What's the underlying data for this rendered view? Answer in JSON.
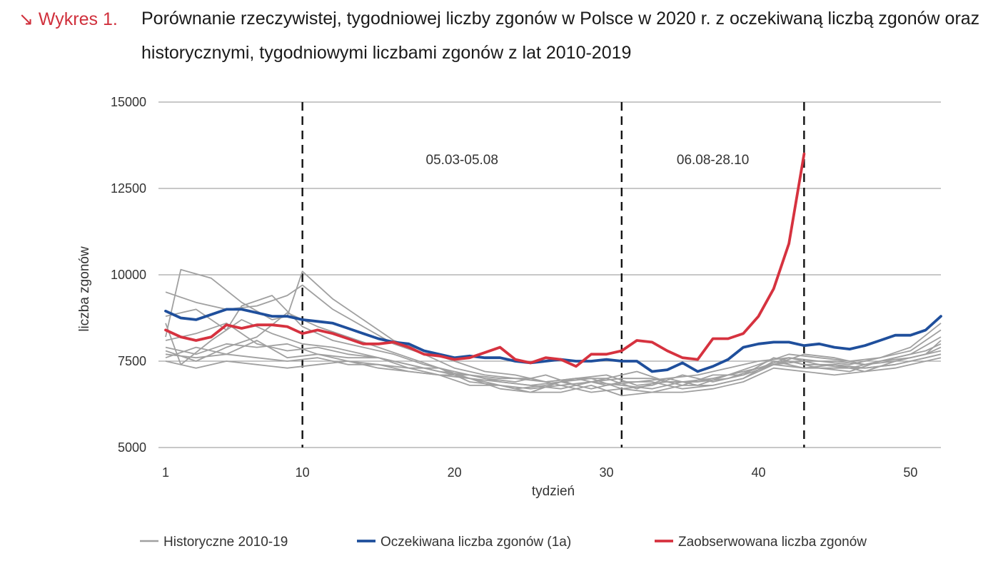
{
  "header": {
    "label": "↘ Wykres 1.",
    "title": "Porównanie rzeczywistej, tygodniowej liczby zgonów w Polsce w 2020 r. z oczekiwaną liczbą zgonów oraz historycznymi, tygodniowymi liczbami zgonów z lat 2010-2019"
  },
  "colors": {
    "historical": "#a0a0a0",
    "expected": "#1f4f9c",
    "observed": "#d6323f",
    "title_accent": "#d0303c"
  },
  "chart_data": {
    "type": "line",
    "xlabel": "tydzień",
    "ylabel": "liczba zgonów",
    "xlim": [
      1,
      52
    ],
    "ylim": [
      5000,
      15000
    ],
    "x_ticks": [
      1,
      10,
      20,
      30,
      40,
      50
    ],
    "y_ticks": [
      5000,
      7500,
      10000,
      12500,
      15000
    ],
    "grid": "horizontal",
    "vertical_markers": [
      10,
      31,
      43
    ],
    "period_labels": [
      {
        "text": "05.03-05.08",
        "x": 20.5,
        "y": 13200
      },
      {
        "text": "06.08-28.10",
        "x": 37,
        "y": 13200
      }
    ],
    "legend_position": "bottom",
    "series": [
      {
        "name": "Historyczne 2010-19",
        "color": "#a0a0a0",
        "group": "historical",
        "lines": [
          {
            "x": [
              1,
              3,
              5,
              7,
              9,
              10,
              12,
              14,
              16,
              18,
              20,
              22,
              24,
              26,
              28,
              30,
              32,
              34,
              36,
              38,
              40,
              42,
              44,
              46,
              48,
              50,
              52
            ],
            "y": [
              9500,
              9200,
              9000,
              9100,
              9400,
              9700,
              9000,
              8500,
              8000,
              7700,
              7300,
              7100,
              7000,
              6900,
              7000,
              6800,
              6900,
              7000,
              7100,
              7300,
              7500,
              7600,
              7500,
              7400,
              7600,
              7800,
              8400
            ]
          },
          {
            "x": [
              1,
              2,
              4,
              6,
              8,
              9,
              10,
              12,
              14,
              16,
              18,
              20,
              22,
              24,
              26,
              28,
              30,
              32,
              34,
              36,
              38,
              40,
              42,
              44,
              46,
              48,
              50,
              52
            ],
            "y": [
              8200,
              10150,
              9900,
              9200,
              8700,
              8800,
              10100,
              9300,
              8700,
              8100,
              7800,
              7500,
              7200,
              7100,
              6900,
              7000,
              7100,
              6800,
              6900,
              6900,
              7100,
              7400,
              7700,
              7600,
              7500,
              7600,
              7900,
              8600
            ]
          },
          {
            "x": [
              1,
              3,
              5,
              7,
              9,
              11,
              13,
              15,
              17,
              19,
              21,
              23,
              25,
              27,
              29,
              31,
              33,
              35,
              37,
              39,
              41,
              43,
              45,
              47,
              49,
              51,
              52
            ],
            "y": [
              7800,
              7500,
              7900,
              8200,
              8900,
              8500,
              8200,
              7900,
              7600,
              7300,
              7000,
              6900,
              6800,
              6700,
              6900,
              6800,
              6700,
              6900,
              7000,
              7200,
              7400,
              7500,
              7500,
              7400,
              7600,
              7800,
              8000
            ]
          },
          {
            "x": [
              1,
              3,
              5,
              6,
              8,
              10,
              12,
              14,
              16,
              18,
              20,
              22,
              24,
              26,
              28,
              30,
              32,
              34,
              36,
              38,
              40,
              42,
              44,
              46,
              48,
              50,
              52
            ],
            "y": [
              8800,
              9000,
              8400,
              9100,
              9400,
              8500,
              8100,
              7900,
              7700,
              7400,
              7200,
              7000,
              6900,
              7100,
              6800,
              7000,
              6700,
              7000,
              6800,
              7100,
              7300,
              7600,
              7400,
              7300,
              7500,
              7700,
              8200
            ]
          },
          {
            "x": [
              1,
              2,
              4,
              6,
              8,
              10,
              12,
              14,
              16,
              18,
              20,
              22,
              24,
              26,
              28,
              30,
              32,
              34,
              36,
              38,
              40,
              42,
              44,
              46,
              48,
              50,
              52
            ],
            "y": [
              8600,
              7400,
              8100,
              8700,
              8300,
              8000,
              7900,
              7700,
              7500,
              7300,
              7100,
              6900,
              6700,
              6800,
              7000,
              7000,
              7200,
              6900,
              6900,
              7000,
              7300,
              7500,
              7300,
              7200,
              7500,
              7600,
              7800
            ]
          },
          {
            "x": [
              1,
              3,
              5,
              7,
              9,
              11,
              13,
              15,
              17,
              19,
              21,
              23,
              25,
              27,
              29,
              31,
              33,
              35,
              37,
              39,
              41,
              43,
              45,
              47,
              49,
              51,
              52
            ],
            "y": [
              8100,
              8300,
              8600,
              8000,
              7800,
              7900,
              7700,
              7600,
              7400,
              7200,
              7100,
              7000,
              7000,
              6800,
              6900,
              7000,
              7000,
              6800,
              7100,
              7100,
              7400,
              7700,
              7600,
              7400,
              7500,
              7700,
              8100
            ]
          },
          {
            "x": [
              1,
              3,
              5,
              7,
              9,
              11,
              13,
              15,
              17,
              19,
              21,
              23,
              25,
              27,
              29,
              31,
              33,
              35,
              37,
              39,
              41,
              43,
              45,
              47,
              49,
              51,
              52
            ],
            "y": [
              7600,
              7900,
              7700,
              8100,
              7600,
              7700,
              7500,
              7400,
              7300,
              7300,
              6900,
              6800,
              6600,
              6900,
              6700,
              6900,
              6900,
              6700,
              6800,
              7000,
              7500,
              7300,
              7400,
              7300,
              7400,
              7600,
              7700
            ]
          },
          {
            "x": [
              1,
              3,
              5,
              7,
              9,
              11,
              13,
              15,
              17,
              19,
              21,
              23,
              25,
              27,
              29,
              31,
              33,
              35,
              37,
              39,
              41,
              43,
              45,
              47,
              49,
              51,
              52
            ],
            "y": [
              7900,
              7700,
              8000,
              7900,
              8000,
              7700,
              7600,
              7600,
              7300,
              7100,
              7100,
              6900,
              6800,
              6900,
              7000,
              6700,
              6800,
              7100,
              6900,
              7100,
              7600,
              7400,
              7400,
              7200,
              7500,
              7700,
              7900
            ]
          },
          {
            "x": [
              1,
              3,
              5,
              7,
              9,
              11,
              13,
              15,
              17,
              19,
              21,
              23,
              25,
              27,
              29,
              31,
              33,
              35,
              37,
              39,
              41,
              43,
              45,
              47,
              49,
              51,
              52
            ],
            "y": [
              7500,
              7300,
              7500,
              7400,
              7300,
              7400,
              7500,
              7300,
              7200,
              7100,
              7000,
              6700,
              6600,
              6600,
              6800,
              6500,
              6600,
              6600,
              6700,
              6900,
              7300,
              7200,
              7100,
              7200,
              7300,
              7500,
              7600
            ]
          },
          {
            "x": [
              1,
              3,
              5,
              7,
              9,
              11,
              13,
              15,
              17,
              19,
              21,
              23,
              25,
              27,
              29,
              31,
              33,
              35,
              37,
              39,
              41,
              43,
              45,
              47,
              49,
              51,
              52
            ],
            "y": [
              7700,
              7600,
              7700,
              7600,
              7500,
              7600,
              7400,
              7400,
              7200,
              7100,
              6800,
              6800,
              6700,
              6800,
              6600,
              6700,
              6600,
              6800,
              6800,
              7000,
              7400,
              7300,
              7300,
              7300,
              7400,
              7600,
              7700
            ]
          }
        ]
      },
      {
        "name": "Oczekiwana liczba zgonów (1a)",
        "color": "#1f4f9c",
        "group": "expected",
        "x": [
          1,
          2,
          3,
          4,
          5,
          6,
          7,
          8,
          9,
          10,
          11,
          12,
          13,
          14,
          15,
          16,
          17,
          18,
          19,
          20,
          21,
          22,
          23,
          24,
          25,
          26,
          27,
          28,
          29,
          30,
          31,
          32,
          33,
          34,
          35,
          36,
          37,
          38,
          39,
          40,
          41,
          42,
          43,
          44,
          45,
          46,
          47,
          48,
          49,
          50,
          51,
          52
        ],
        "y": [
          8950,
          8750,
          8700,
          8850,
          9000,
          9000,
          8900,
          8800,
          8800,
          8700,
          8650,
          8600,
          8450,
          8300,
          8150,
          8050,
          8000,
          7800,
          7700,
          7600,
          7650,
          7600,
          7600,
          7500,
          7450,
          7500,
          7550,
          7500,
          7500,
          7550,
          7500,
          7500,
          7200,
          7250,
          7450,
          7200,
          7350,
          7550,
          7900,
          8000,
          8050,
          8050,
          7950,
          8000,
          7900,
          7850,
          7950,
          8100,
          8250,
          8250,
          8400,
          8800
        ]
      },
      {
        "name": "Zaobserwowana liczba zgonów",
        "color": "#d6323f",
        "group": "observed",
        "x": [
          1,
          2,
          3,
          4,
          5,
          6,
          7,
          8,
          9,
          10,
          11,
          12,
          13,
          14,
          15,
          16,
          17,
          18,
          19,
          20,
          21,
          22,
          23,
          24,
          25,
          26,
          27,
          28,
          29,
          30,
          31,
          32,
          33,
          34,
          35,
          36,
          37,
          38,
          39,
          40,
          41,
          42,
          43
        ],
        "y": [
          8400,
          8200,
          8100,
          8200,
          8550,
          8450,
          8550,
          8550,
          8500,
          8300,
          8400,
          8300,
          8150,
          8000,
          8000,
          8050,
          7900,
          7700,
          7650,
          7550,
          7600,
          7750,
          7900,
          7550,
          7450,
          7600,
          7550,
          7350,
          7700,
          7700,
          7800,
          8100,
          8050,
          7800,
          7600,
          7550,
          8150,
          8150,
          8300,
          8800,
          9600,
          10900,
          13500
        ]
      }
    ],
    "legend": [
      {
        "label": "Historyczne 2010-19",
        "color": "#a0a0a0"
      },
      {
        "label": "Oczekiwana liczba zgonów (1a)",
        "color": "#1f4f9c"
      },
      {
        "label": "Zaobserwowana liczba zgonów",
        "color": "#d6323f"
      }
    ]
  }
}
